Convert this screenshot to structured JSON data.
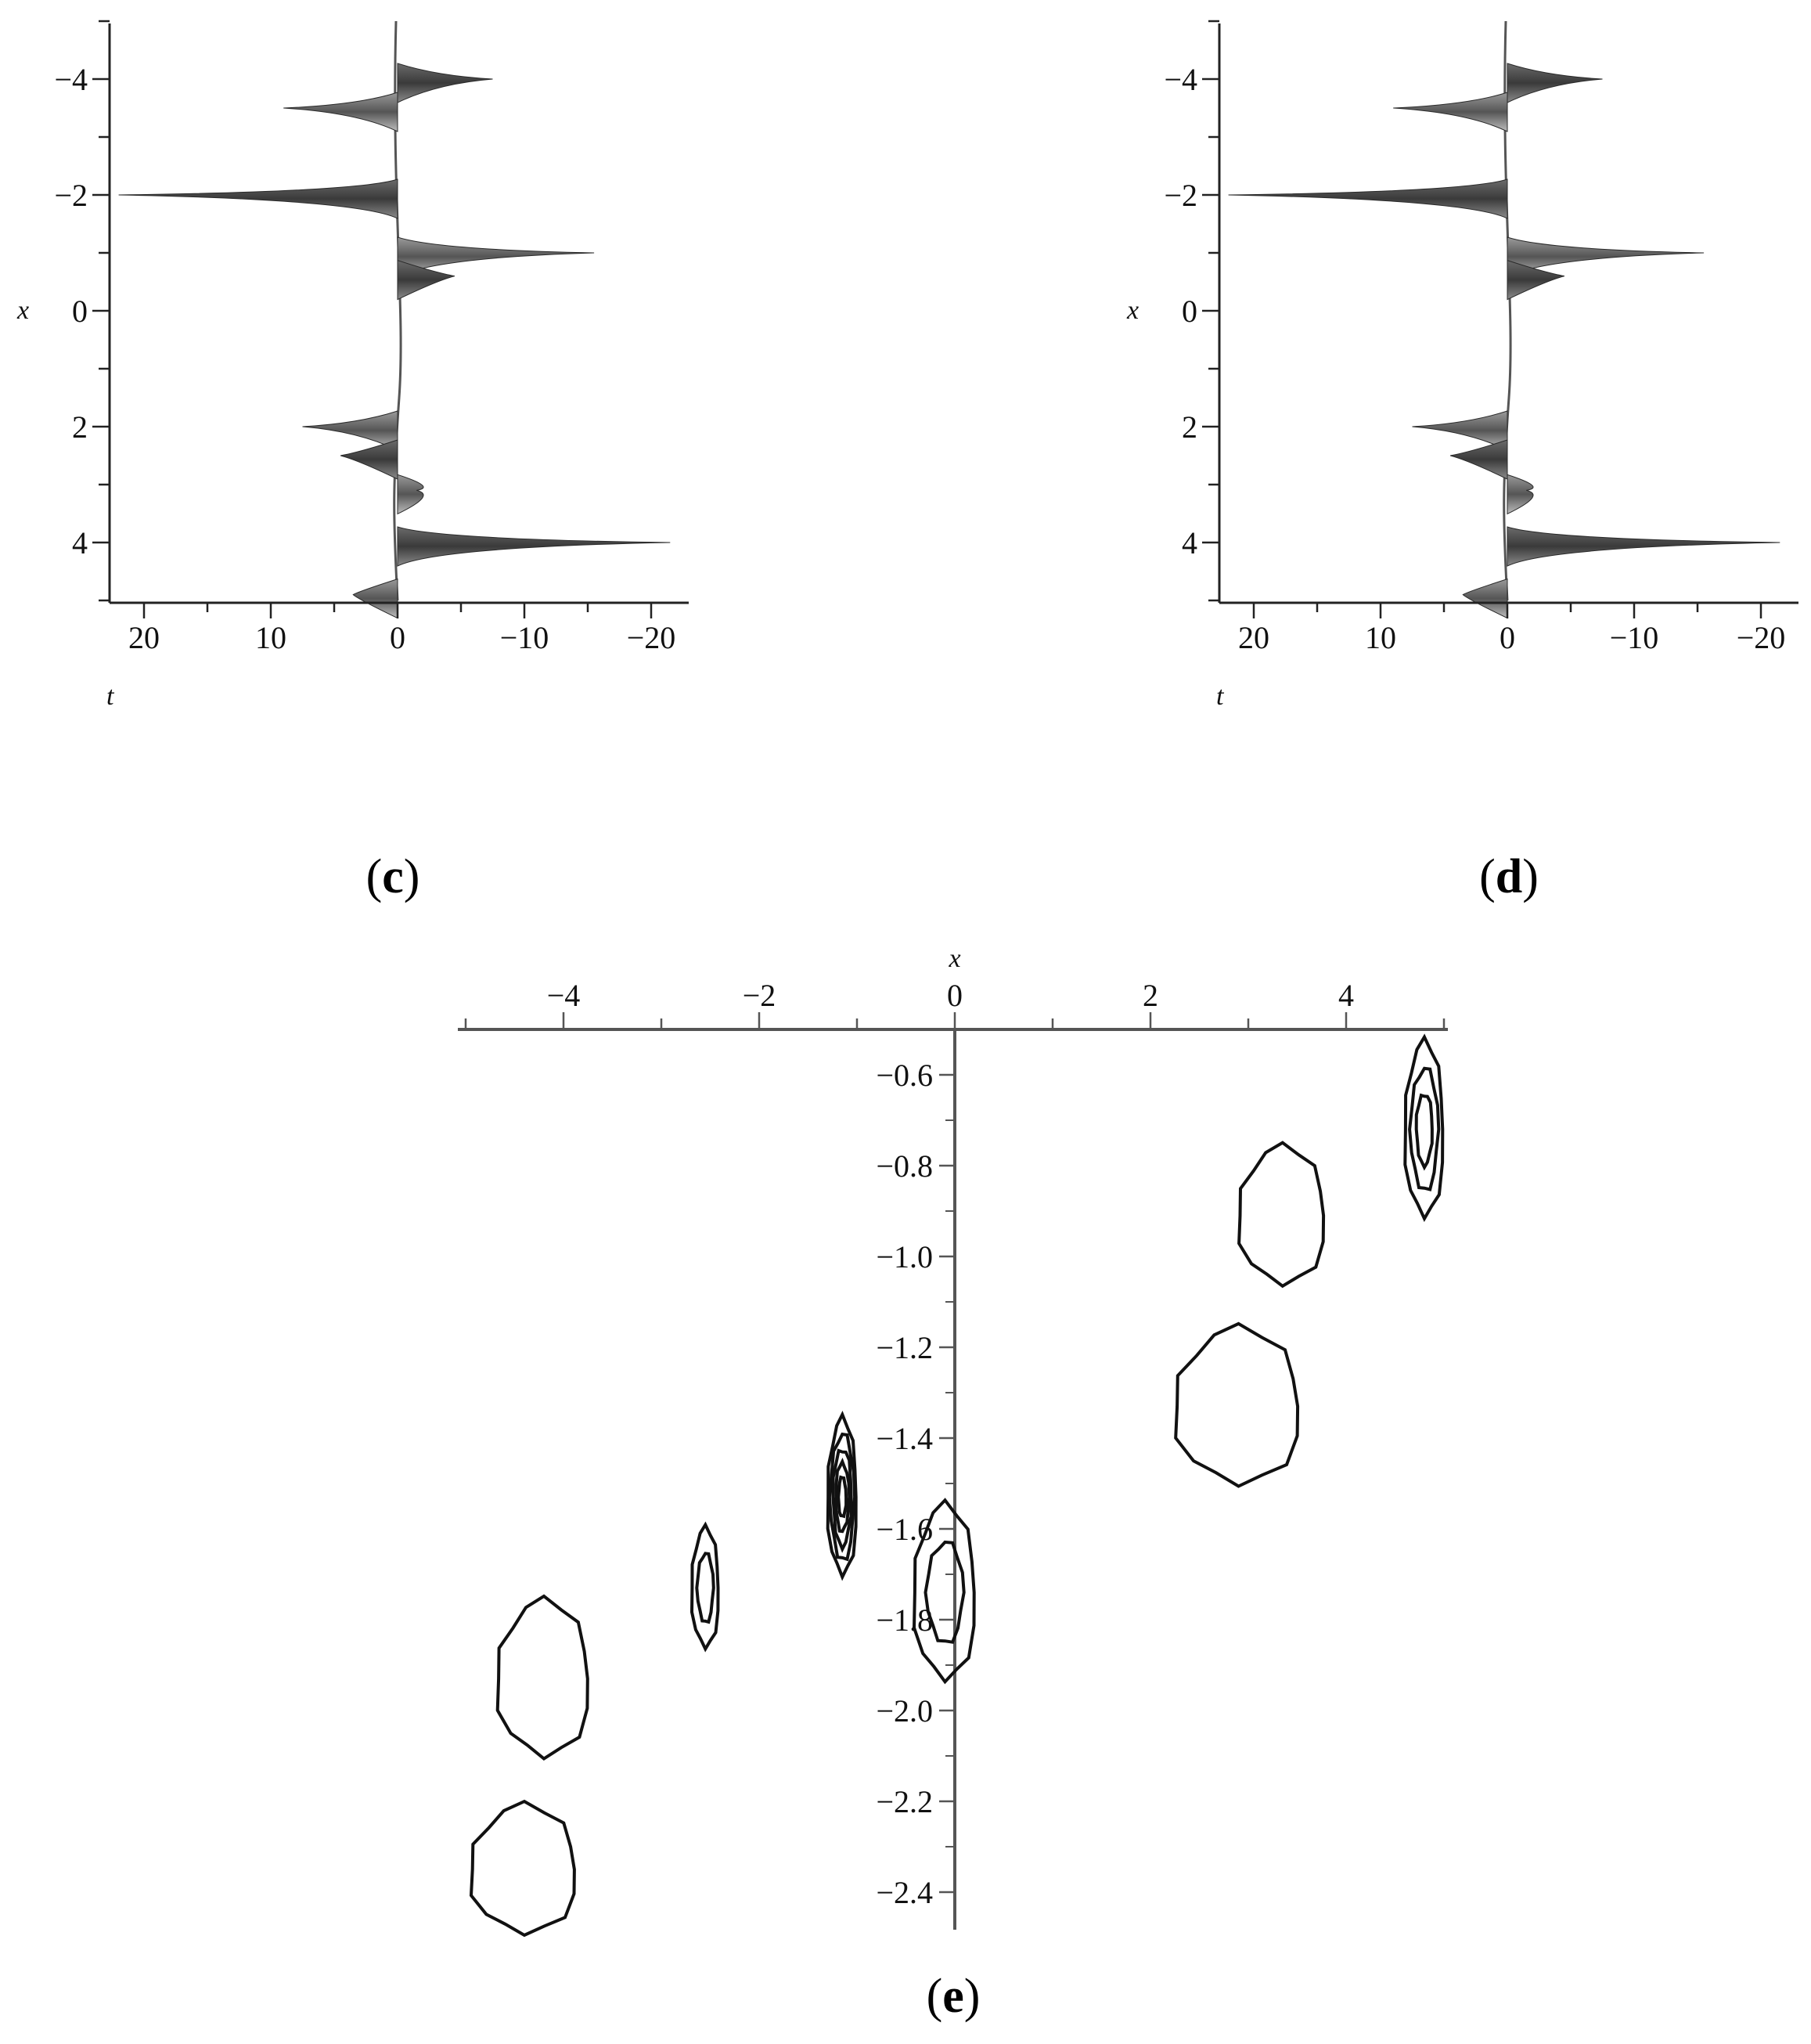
{
  "chart_data": [
    {
      "panel": "c",
      "type": "area",
      "xlabel": "x",
      "ylabel": "t",
      "x_axis_ticks": [
        -4,
        -2,
        0,
        2,
        4
      ],
      "t_axis_ticks": [
        20,
        10,
        0,
        -10,
        -20
      ],
      "xlim": [
        -5,
        5
      ],
      "tlim": [
        23,
        -23
      ],
      "spikes": [
        {
          "x": -4.0,
          "t": -7.5
        },
        {
          "x": -3.5,
          "t": 9.0
        },
        {
          "x": -2.0,
          "t": 22.0
        },
        {
          "x": -1.0,
          "t": -15.5
        },
        {
          "x": -0.6,
          "t": -4.5
        },
        {
          "x": 2.0,
          "t": 7.5
        },
        {
          "x": 2.5,
          "t": 4.5
        },
        {
          "x": 3.1,
          "t": -1.5
        },
        {
          "x": 4.0,
          "t": -21.5
        },
        {
          "x": 4.9,
          "t": 3.5
        }
      ]
    },
    {
      "panel": "d",
      "type": "area",
      "xlabel": "x",
      "ylabel": "t",
      "x_axis_ticks": [
        -4,
        -2,
        0,
        2,
        4
      ],
      "t_axis_ticks": [
        20,
        10,
        0,
        -10,
        -20
      ],
      "xlim": [
        -5,
        5
      ],
      "tlim": [
        23,
        -23
      ],
      "spikes": [
        {
          "x": -4.0,
          "t": -7.5
        },
        {
          "x": -3.5,
          "t": 9.0
        },
        {
          "x": -2.0,
          "t": 22.0
        },
        {
          "x": -1.0,
          "t": -15.5
        },
        {
          "x": -0.6,
          "t": -4.5
        },
        {
          "x": 2.0,
          "t": 7.5
        },
        {
          "x": 2.5,
          "t": 4.5
        },
        {
          "x": 3.1,
          "t": -1.5
        },
        {
          "x": 4.0,
          "t": -21.5
        },
        {
          "x": 4.9,
          "t": 3.5
        }
      ]
    },
    {
      "panel": "e",
      "type": "contour",
      "xlabel": "x",
      "x_ticks": [
        -4,
        -2,
        0,
        2,
        4
      ],
      "y_ticks": [
        "-0.6",
        "-0.8",
        "-1.0",
        "-1.2",
        "-1.4",
        "-1.6",
        "-1.8",
        "-2.0",
        "-2.2",
        "-2.4"
      ],
      "xlim": [
        -5,
        5
      ],
      "ylim": [
        -2.5,
        -0.5
      ],
      "contours": [
        {
          "cx": 4.8,
          "cy": -0.72,
          "rx": 0.2,
          "ry": 0.19,
          "levels": 3
        },
        {
          "cx": 3.35,
          "cy": -0.91,
          "rx": 0.45,
          "ry": 0.15,
          "levels": 1
        },
        {
          "cx": 2.9,
          "cy": -1.33,
          "rx": 0.65,
          "ry": 0.17,
          "levels": 1
        },
        {
          "cx": -1.15,
          "cy": -1.53,
          "rx": 0.15,
          "ry": 0.17,
          "levels": 5
        },
        {
          "cx": -0.1,
          "cy": -1.74,
          "rx": 0.32,
          "ry": 0.19,
          "levels": 2
        },
        {
          "cx": -2.55,
          "cy": -1.73,
          "rx": 0.14,
          "ry": 0.13,
          "levels": 2
        },
        {
          "cx": -4.2,
          "cy": -1.93,
          "rx": 0.48,
          "ry": 0.17,
          "levels": 1
        },
        {
          "cx": -4.4,
          "cy": -2.35,
          "rx": 0.55,
          "ry": 0.14,
          "levels": 1
        }
      ]
    }
  ],
  "labels": {
    "c": {
      "open": "(",
      "letter": "c",
      "close": ")"
    },
    "d": {
      "open": "(",
      "letter": "d",
      "close": ")"
    },
    "e": {
      "open": "(",
      "letter": "e",
      "close": ")"
    }
  }
}
